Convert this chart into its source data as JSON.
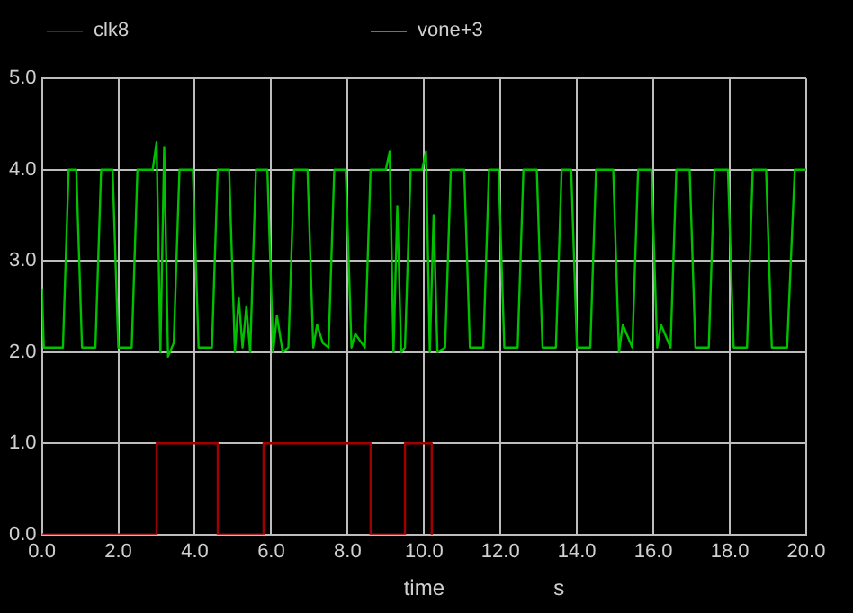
{
  "chart_data": {
    "type": "line",
    "xlabel": "time",
    "annotations": [
      "s"
    ],
    "xlim": [
      0,
      20
    ],
    "xticks": [
      {
        "value": 0,
        "label": "0.0"
      },
      {
        "value": 2,
        "label": "2.0"
      },
      {
        "value": 4,
        "label": "4.0"
      },
      {
        "value": 6,
        "label": "6.0"
      },
      {
        "value": 8,
        "label": "8.0"
      },
      {
        "value": 10,
        "label": "10.0"
      },
      {
        "value": 12,
        "label": "12.0"
      },
      {
        "value": 14,
        "label": "14.0"
      },
      {
        "value": 16,
        "label": "16.0"
      },
      {
        "value": 18,
        "label": "18.0"
      },
      {
        "value": 20,
        "label": "20.0"
      }
    ],
    "ylim": [
      0,
      5
    ],
    "yticks": [
      {
        "value": 0,
        "label": "0.0"
      },
      {
        "value": 1,
        "label": "1.0"
      },
      {
        "value": 2,
        "label": "2.0"
      },
      {
        "value": 3,
        "label": "3.0"
      },
      {
        "value": 4,
        "label": "4.0"
      },
      {
        "value": 5,
        "label": "5.0"
      }
    ],
    "grid": true,
    "legend": "top",
    "line_style": "solid",
    "series": [
      {
        "name": "clk8",
        "color": "#a00000",
        "x": [
          0,
          3.0,
          3.0,
          4.6,
          4.6,
          5.8,
          5.8,
          8.6,
          8.6,
          9.5,
          9.5,
          10.2,
          10.2
        ],
        "values": [
          0,
          0,
          1,
          1,
          0,
          0,
          1,
          1,
          0,
          0,
          1,
          1,
          0
        ]
      },
      {
        "name": "vone+3",
        "color": "#00c000",
        "x": [
          0,
          0.05,
          0.55,
          0.7,
          0.9,
          1.05,
          1.4,
          1.55,
          1.85,
          2.0,
          2.35,
          2.5,
          2.9,
          3.0,
          3.1,
          3.2,
          3.3,
          3.45,
          3.6,
          3.95,
          4.1,
          4.45,
          4.6,
          4.9,
          5.05,
          5.15,
          5.25,
          5.35,
          5.45,
          5.6,
          5.9,
          6.05,
          6.15,
          6.3,
          6.45,
          6.6,
          6.95,
          7.1,
          7.2,
          7.35,
          7.5,
          7.65,
          7.95,
          8.1,
          8.2,
          8.45,
          8.6,
          9.0,
          9.1,
          9.2,
          9.3,
          9.4,
          9.5,
          9.65,
          9.95,
          10.05,
          10.15,
          10.25,
          10.35,
          10.55,
          10.7,
          11.05,
          11.2,
          11.55,
          11.7,
          11.95,
          12.1,
          12.45,
          12.6,
          12.95,
          13.1,
          13.45,
          13.6,
          13.85,
          14.0,
          14.35,
          14.5,
          14.95,
          15.1,
          15.2,
          15.45,
          15.6,
          15.95,
          16.1,
          16.2,
          16.45,
          16.6,
          16.95,
          17.1,
          17.45,
          17.6,
          17.95,
          18.1,
          18.45,
          18.6,
          18.95,
          19.1,
          19.5,
          19.7,
          20
        ],
        "values": [
          2.7,
          2.05,
          2.05,
          4.0,
          4.0,
          2.05,
          2.05,
          4.0,
          4.0,
          2.05,
          2.05,
          4.0,
          4.0,
          4.3,
          2.0,
          4.25,
          1.95,
          2.1,
          4.0,
          4.0,
          2.05,
          2.05,
          4.0,
          4.0,
          2.0,
          2.6,
          2.05,
          2.5,
          2.0,
          4.0,
          4.0,
          2.0,
          2.4,
          2.0,
          2.05,
          4.0,
          4.0,
          2.05,
          2.3,
          2.1,
          2.05,
          4.0,
          4.0,
          2.05,
          2.2,
          2.05,
          4.0,
          4.0,
          4.2,
          2.0,
          3.6,
          2.0,
          2.05,
          4.0,
          4.0,
          4.2,
          2.0,
          3.5,
          2.0,
          2.05,
          4.0,
          4.0,
          2.05,
          2.05,
          4.0,
          4.0,
          2.05,
          2.05,
          4.0,
          4.0,
          2.05,
          2.05,
          4.0,
          4.0,
          2.05,
          2.05,
          4.0,
          4.0,
          2.0,
          2.3,
          2.05,
          4.0,
          4.0,
          2.05,
          2.3,
          2.05,
          4.0,
          4.0,
          2.05,
          2.05,
          4.0,
          4.0,
          2.05,
          2.05,
          4.0,
          4.0,
          2.05,
          2.05,
          4.0,
          4.0
        ]
      }
    ]
  }
}
